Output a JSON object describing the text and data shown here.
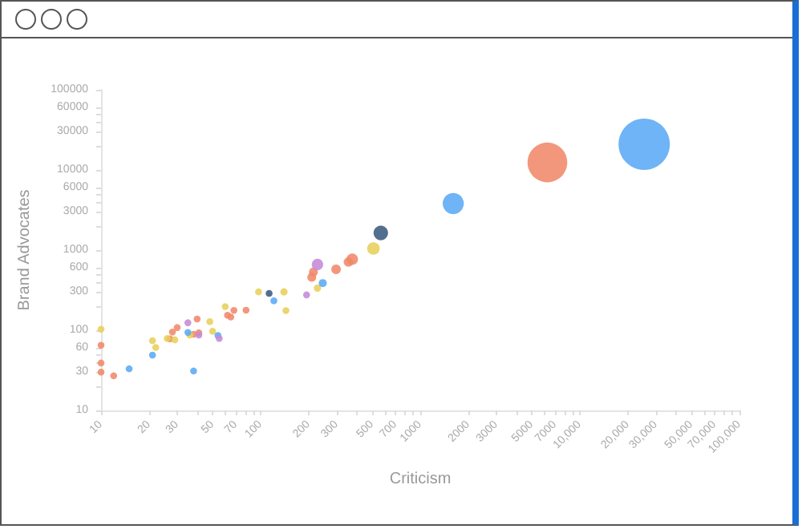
{
  "chart_data": {
    "type": "bubble",
    "xlabel": "Criticism",
    "ylabel": "Brand Advocates",
    "log": "xy",
    "grid": false,
    "marker": "circle",
    "xlim": [
      10,
      100000
    ],
    "ylim": [
      10,
      100000
    ],
    "xticks": [
      10,
      20,
      30,
      {
        "value": 40,
        "label": null
      },
      50,
      {
        "value": 60,
        "label": null
      },
      70,
      {
        "value": 80,
        "label": null
      },
      {
        "value": 90,
        "label": null
      },
      100,
      200,
      300,
      {
        "value": 400,
        "label": null
      },
      500,
      {
        "value": 600,
        "label": null
      },
      700,
      {
        "value": 800,
        "label": null
      },
      {
        "value": 900,
        "label": null
      },
      1000,
      2000,
      3000,
      {
        "value": 4000,
        "label": null
      },
      5000,
      {
        "value": 6000,
        "label": null
      },
      7000,
      {
        "value": 8000,
        "label": null
      },
      {
        "value": 9000,
        "label": null
      },
      {
        "value": 10000,
        "label": "10,000"
      },
      {
        "value": 20000,
        "label": "20,000"
      },
      {
        "value": 30000,
        "label": "30,000"
      },
      {
        "value": 40000,
        "label": null
      },
      {
        "value": 50000,
        "label": "50,000"
      },
      {
        "value": 60000,
        "label": null
      },
      {
        "value": 70000,
        "label": "70,000"
      },
      {
        "value": 80000,
        "label": null
      },
      {
        "value": 90000,
        "label": null
      },
      {
        "value": 100000,
        "label": "100,000"
      }
    ],
    "yticks": [
      10,
      {
        "value": 20,
        "label": null
      },
      30,
      {
        "value": 40,
        "label": null
      },
      {
        "value": 50,
        "label": null
      },
      60,
      100,
      {
        "value": 200,
        "label": null
      },
      300,
      {
        "value": 400,
        "label": null
      },
      {
        "value": 500,
        "label": null
      },
      600,
      1000,
      {
        "value": 2000,
        "label": null
      },
      3000,
      {
        "value": 4000,
        "label": null
      },
      {
        "value": 5000,
        "label": null
      },
      6000,
      10000,
      {
        "value": 20000,
        "label": null
      },
      30000,
      {
        "value": 40000,
        "label": null
      },
      {
        "value": 50000,
        "label": null
      },
      60000,
      100000
    ],
    "series": [
      {
        "color": "#f0896a",
        "x": [
          10,
          10,
          10,
          12,
          27,
          28,
          30,
          38,
          40,
          41,
          62,
          65,
          68,
          81,
          209,
          214,
          297,
          355,
          375,
          6260
        ],
        "values": [
          65,
          39,
          30,
          27,
          78,
          95,
          108,
          89,
          138,
          93,
          154,
          146,
          177,
          178,
          458,
          532,
          575,
          710,
          769,
          12400
        ],
        "sizes": [
          0.018,
          0.018,
          0.018,
          0.018,
          0.018,
          0.018,
          0.018,
          0.018,
          0.018,
          0.018,
          0.018,
          0.018,
          0.018,
          0.018,
          0.03,
          0.03,
          0.035,
          0.035,
          0.05,
          0.6
        ]
      },
      {
        "color": "#e8cf5a",
        "x": [
          10,
          21,
          22,
          26,
          29,
          36,
          48,
          50,
          60,
          97,
          140,
          144,
          227,
          509
        ],
        "values": [
          103,
          74,
          61,
          79,
          76,
          87,
          128,
          97,
          197,
          301,
          301,
          176,
          335,
          1047
        ],
        "sizes": [
          0.018,
          0.018,
          0.018,
          0.018,
          0.018,
          0.018,
          0.018,
          0.018,
          0.018,
          0.018,
          0.02,
          0.018,
          0.02,
          0.06
        ]
      },
      {
        "color": "#5aaaf5",
        "x": [
          15,
          21,
          35,
          38,
          54,
          121,
          245,
          1610,
          25300
        ],
        "values": [
          33,
          49,
          94,
          31,
          86,
          233,
          387,
          3800,
          20900
        ],
        "sizes": [
          0.018,
          0.018,
          0.018,
          0.018,
          0.018,
          0.018,
          0.025,
          0.17,
          1
        ]
      },
      {
        "color": "#c58ad6",
        "x": [
          35,
          41,
          55,
          194,
          227
        ],
        "values": [
          124,
          87,
          79,
          276,
          661
        ],
        "sizes": [
          0.018,
          0.018,
          0.018,
          0.018,
          0.05
        ]
      },
      {
        "color": "#3b5b80",
        "x": [
          113,
          566
        ],
        "values": [
          288,
          1637
        ],
        "sizes": [
          0.018,
          0.08
        ]
      }
    ]
  }
}
